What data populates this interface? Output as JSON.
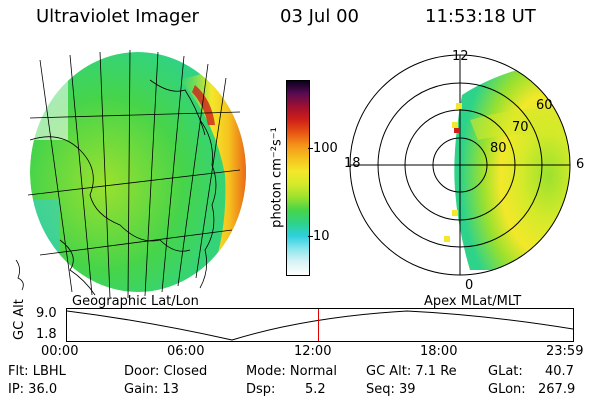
{
  "header": {
    "title": "Ultraviolet Imager",
    "date": "03 Jul 00",
    "time": "11:53:18 UT"
  },
  "colorbar": {
    "label": "photon cm⁻²s⁻¹",
    "tick_upper": "100",
    "tick_lower": "10",
    "colors": [
      "#ffffff",
      "#d9f3f5",
      "#8ee6ee",
      "#2fd0e0",
      "#2ed38a",
      "#46d44a",
      "#9be12e",
      "#d4ea2a",
      "#f3e82a",
      "#f6c21e",
      "#f5951a",
      "#e85514",
      "#cf1f19",
      "#a01030",
      "#5a0b52",
      "#0a001e"
    ]
  },
  "left_map": {
    "label": "Geographic Lat/Lon"
  },
  "polar": {
    "label": "Apex MLat/MLT",
    "mlt_labels": {
      "top": "12",
      "right": "6",
      "bottom": "0",
      "left": "18"
    },
    "lat_labels": [
      "60",
      "70",
      "80"
    ]
  },
  "timeline": {
    "axis_label": "GC Alt",
    "y_top": "9.0",
    "y_bottom": "1.8",
    "ticks": [
      "00:00",
      "06:00",
      "12:00",
      "18:00",
      "23:59"
    ],
    "current_time_fraction": 0.4955,
    "marker_color": "#e00000"
  },
  "footer": {
    "flt": "Flt: LBHL",
    "door": "Door: Closed",
    "mode": "Mode: Normal",
    "gcalt": "GC Alt: 7.1 Re",
    "glat_label": "GLat:",
    "glat_value": "40.7",
    "ip": "IP: 36.0",
    "gain": "Gain: 13",
    "dsp_label": "Dsp:",
    "dsp_value": "5.2",
    "seq": "Seq: 39",
    "glon_label": "GLon:",
    "glon_value": "267.9"
  }
}
